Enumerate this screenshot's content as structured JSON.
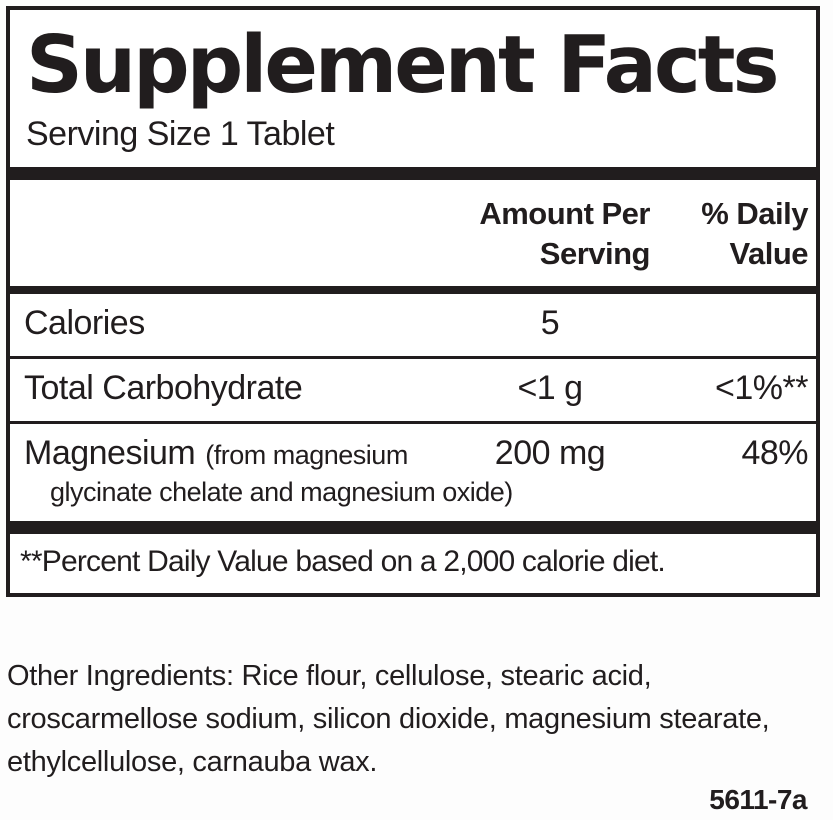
{
  "label": {
    "title": "Supplement Facts",
    "serving_size": "Serving Size 1 Tablet",
    "header": {
      "amount_line1": "Amount Per",
      "amount_line2": "Serving",
      "dv_line1": "% Daily",
      "dv_line2": "Value"
    },
    "rows": [
      {
        "name": "Calories",
        "amount": "5",
        "dv": ""
      },
      {
        "name": "Total Carbohydrate",
        "amount": "<1 g",
        "dv": "<1%**"
      },
      {
        "name": "Magnesium",
        "name_note": "(from magnesium",
        "name_note2": "glycinate chelate and magnesium oxide)",
        "amount": "200 mg",
        "dv": "48%"
      }
    ],
    "footnote": "**Percent Daily Value based on a 2,000 calorie diet."
  },
  "other_ingredients": "Other Ingredients: Rice flour, cellulose, stearic acid, croscarmellose sodium, silicon dioxide, magnesium stearate, ethylcellulose, carnauba wax.",
  "product_code": "5611-7a",
  "colors": {
    "text": "#211d1e",
    "background": "#ffffff"
  }
}
